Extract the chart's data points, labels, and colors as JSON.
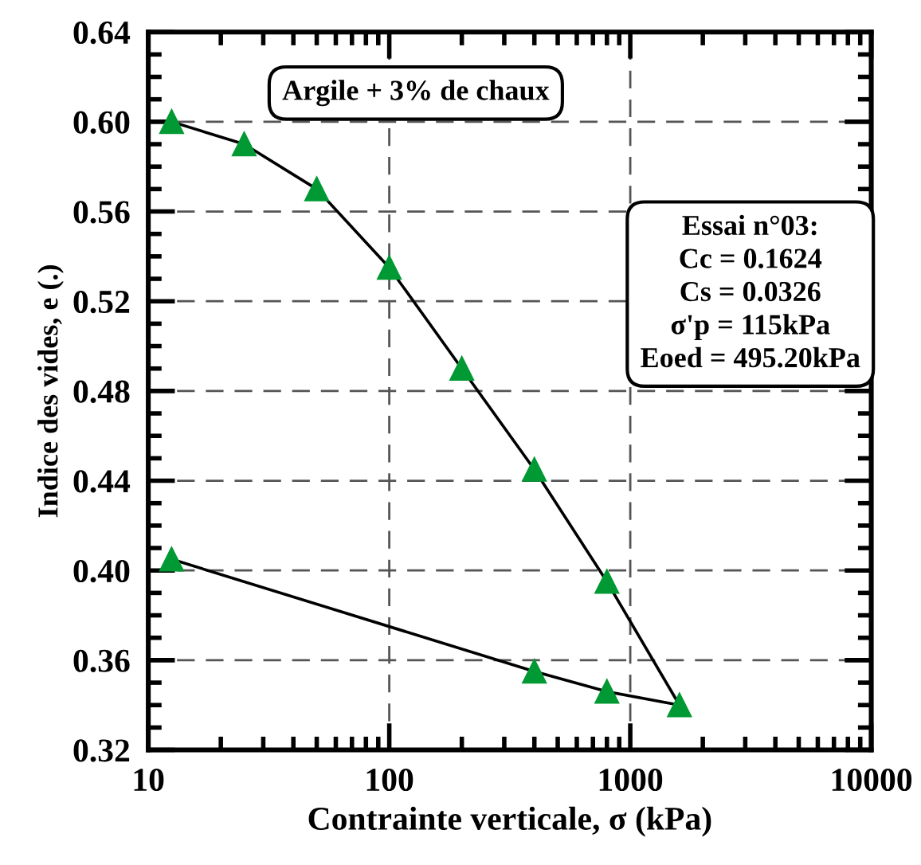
{
  "chart_data": {
    "type": "line",
    "xlabel": "Contrainte verticale, σ (kPa)",
    "ylabel": "Indice des vides, e (.)",
    "x": [
      12.5,
      25,
      50,
      100,
      200,
      400,
      800,
      1600,
      800,
      400,
      12.5
    ],
    "series": [
      {
        "color": "#009933",
        "values": [
          0.6,
          0.59,
          0.57,
          0.535,
          0.49,
          0.445,
          0.395,
          0.34,
          0.346,
          0.355,
          0.405
        ]
      }
    ],
    "log": "x",
    "xlim": [
      10,
      10000
    ],
    "ylim": [
      0.32,
      0.64
    ],
    "xticks": [
      10,
      100,
      1000,
      10000
    ],
    "yticks": [
      0.32,
      0.36,
      {
        "value": 0.4,
        "label": "0.40"
      },
      0.44,
      0.48,
      0.52,
      0.56,
      {
        "value": 0.6,
        "label": "0.60"
      },
      0.64
    ],
    "grid": true,
    "marker": "triangle",
    "line_style": "solid",
    "annotations": [
      "Argile + 3% de chaux",
      "Essai n°03:\nCc = 0.1624\nCs = 0.0326\nσ'p = 115kPa\nEoed = 495.20kPa"
    ]
  }
}
